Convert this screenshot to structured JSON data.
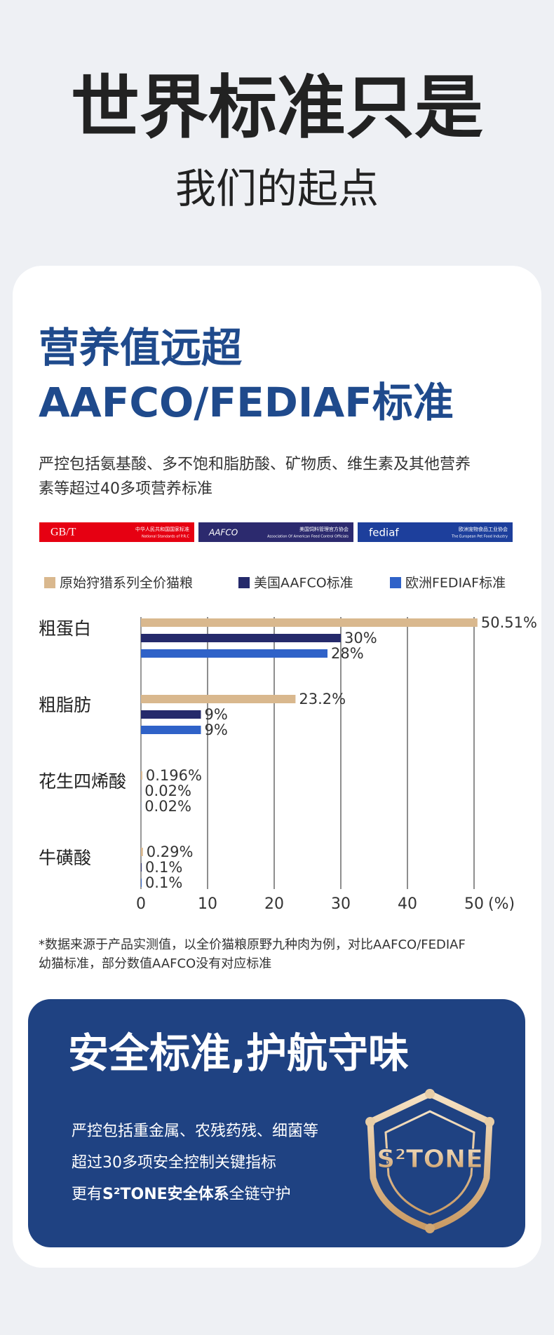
{
  "header": {
    "title": "世界标准只是",
    "subtitle": "我们的起点"
  },
  "nutrition": {
    "title": [
      "营养值远超",
      "AAFCO/FEDIAF标准"
    ],
    "description": [
      "严控包括氨基酸、多不饱和脂肪酸、矿物质、维生素及其他营养",
      "素等超过40多项营养标准"
    ],
    "logos": [
      {
        "name": "GB/T",
        "cn": "中华人民共和国国家标准",
        "en": "National Standards of P.R.C"
      },
      {
        "name": "AAFCO",
        "cn": "美国饲料管理官方协会",
        "en": "Association Of American Feed Control Officials"
      },
      {
        "name": "fediaf",
        "cn": "欧洲宠物食品工业协会",
        "en": "The European Pet Food Industry"
      }
    ],
    "footnote": [
      "*数据来源于产品实测值，以全价猫粮原野九种肉为例，对比AAFCO/FEDIAF",
      "幼猫标准，部分数值AAFCO没有对应标准"
    ]
  },
  "chart_data": {
    "type": "bar",
    "orientation": "horizontal",
    "categories": [
      "粗蛋白",
      "粗脂肪",
      "花生四烯酸",
      "牛磺酸"
    ],
    "series": [
      {
        "name": "原始狩猎系列全价猫粮",
        "color": "#d9b88e",
        "values": [
          50.51,
          23.2,
          0.196,
          0.29
        ],
        "value_labels": [
          "50.51%",
          "23.2%",
          "0.196%",
          "0.29%"
        ]
      },
      {
        "name": "美国AAFCO标准",
        "color": "#252a6b",
        "values": [
          30,
          9,
          0.02,
          0.1
        ],
        "value_labels": [
          "30%",
          "9%",
          "0.02%",
          "0.1%"
        ]
      },
      {
        "name": "欧洲FEDIAF标准",
        "color": "#2f62c8",
        "values": [
          28,
          9,
          0.02,
          0.1
        ],
        "value_labels": [
          "28%",
          "9%",
          "0.02%",
          "0.1%"
        ]
      }
    ],
    "xlim": [
      0,
      50
    ],
    "xticks": [
      0,
      10,
      20,
      30,
      40,
      50
    ],
    "xlabel": "(%)",
    "grid": true
  },
  "safety": {
    "title": "安全标准,护航守味",
    "lines": [
      "严控包括重金属、农残药残、细菌等",
      "超过30多项安全控制关键指标"
    ],
    "line3": [
      "更有",
      "S²TONE安全体系",
      "全链守护"
    ],
    "logo": "S²TONE"
  }
}
